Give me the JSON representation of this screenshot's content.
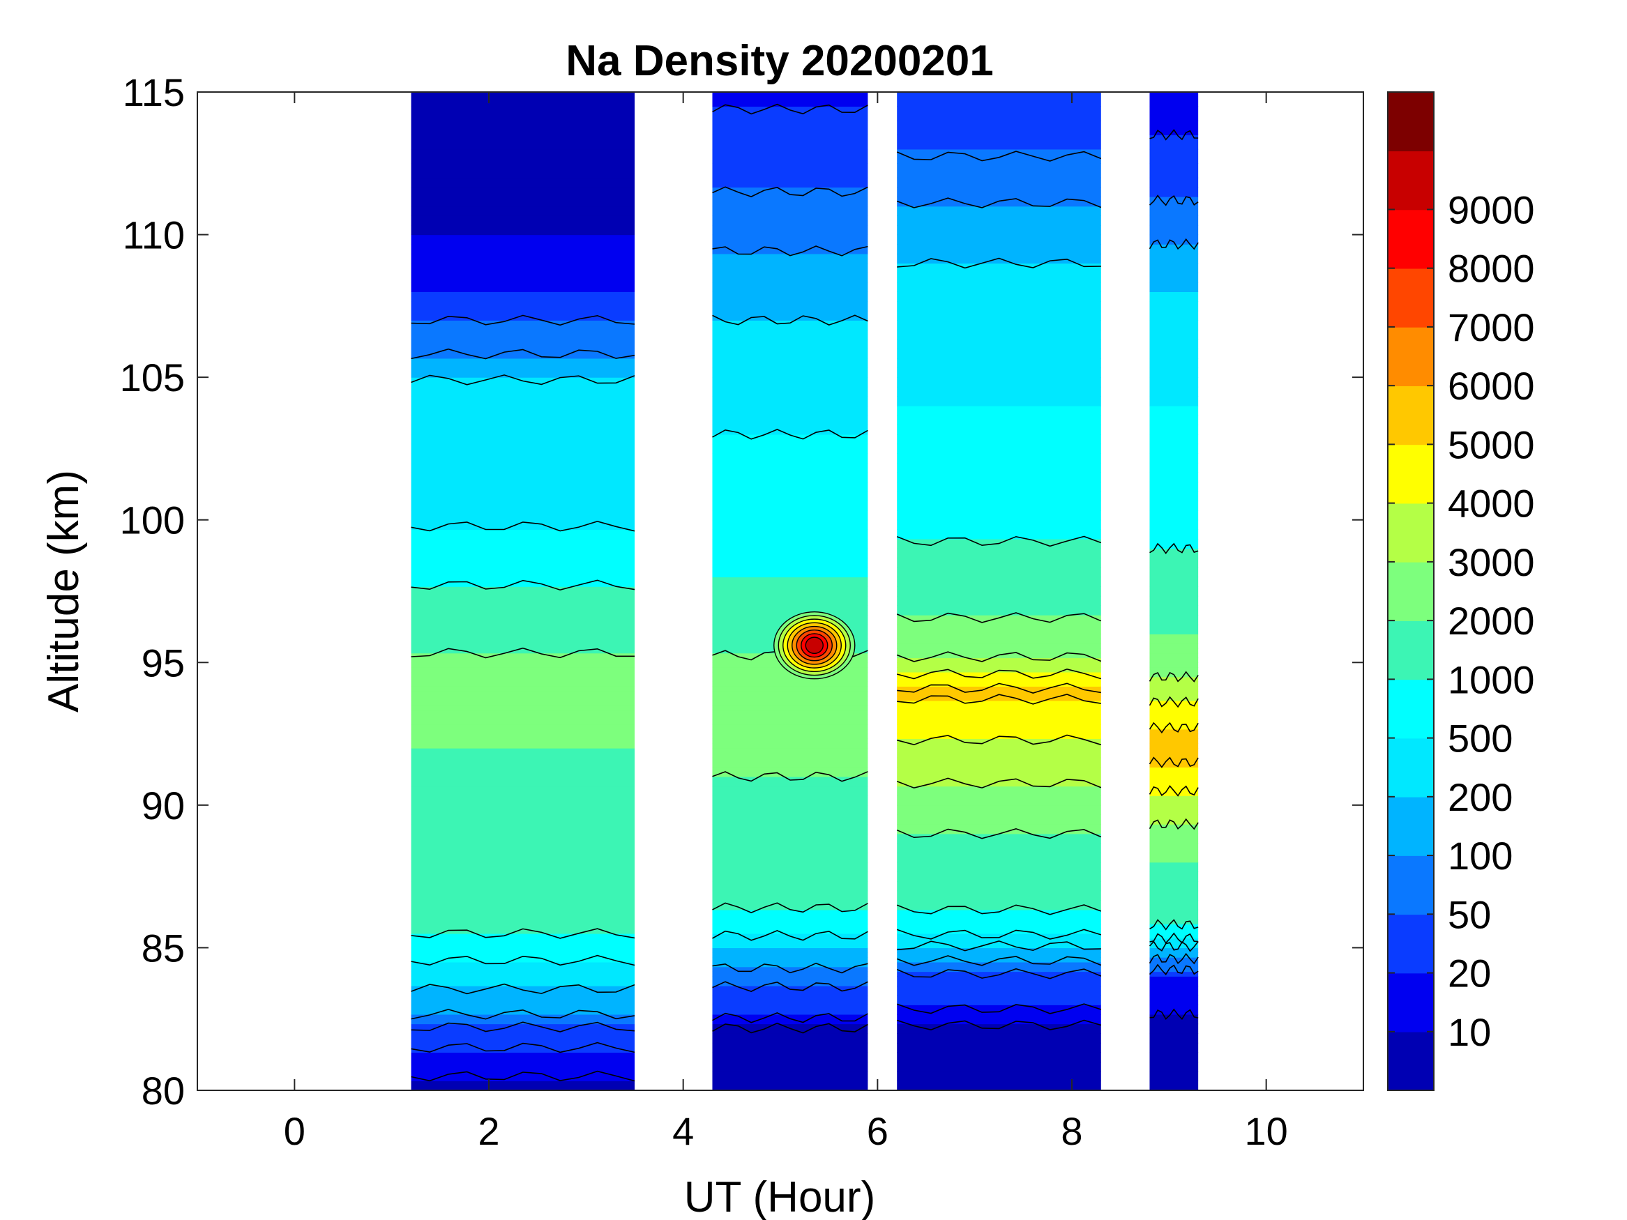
{
  "chart_data": {
    "type": "heatmap",
    "subtype": "filled-contour",
    "title": "Na Density 20200201",
    "xlabel": "UT (Hour)",
    "ylabel": "Altitude (km)",
    "xlim": [
      -1,
      11
    ],
    "ylim": [
      80,
      115
    ],
    "xticks": [
      0,
      2,
      4,
      6,
      8,
      10
    ],
    "yticks": [
      80,
      85,
      90,
      95,
      100,
      105,
      110,
      115
    ],
    "colorbar": {
      "levels": [
        0,
        10,
        20,
        50,
        100,
        200,
        500,
        1000,
        2000,
        3000,
        4000,
        5000,
        6000,
        7000,
        8000,
        9000,
        10000
      ],
      "tick_labels": [
        "10",
        "20",
        "50",
        "100",
        "200",
        "500",
        "1000",
        "2000",
        "3000",
        "4000",
        "5000",
        "6000",
        "7000",
        "8000",
        "9000"
      ],
      "colors": [
        "#0000b3",
        "#0000f0",
        "#0a3cff",
        "#0a78ff",
        "#00b4ff",
        "#00e8ff",
        "#00ffff",
        "#3cf5b4",
        "#7dff7d",
        "#b4ff46",
        "#ffff00",
        "#ffc800",
        "#ff8c00",
        "#ff4600",
        "#ff0000",
        "#c80000",
        "#7d0000"
      ]
    },
    "data_segments": [
      {
        "name": "segment-1",
        "ut_start": 1.2,
        "ut_end": 3.5
      },
      {
        "name": "segment-2",
        "ut_start": 4.3,
        "ut_end": 5.9
      },
      {
        "name": "segment-3",
        "ut_start": 6.2,
        "ut_end": 8.3
      },
      {
        "name": "segment-4",
        "ut_start": 8.8,
        "ut_end": 9.3
      }
    ],
    "sodium_layer": {
      "peak_altitude_km": 93,
      "main_layer_range_km": [
        85,
        100
      ],
      "max_density_peak": {
        "ut": 5.35,
        "altitude_km": 95.6,
        "density": 9000
      }
    },
    "profiles": [
      {
        "alt": 80,
        "seg": [
          5,
          5,
          5,
          5
        ]
      },
      {
        "alt": 82,
        "seg": [
          25,
          5,
          5,
          5
        ]
      },
      {
        "alt": 84,
        "seg": [
          250,
          60,
          40,
          20
        ]
      },
      {
        "alt": 85,
        "seg": [
          700,
          200,
          150,
          150
        ]
      },
      {
        "alt": 86,
        "seg": [
          1300,
          900,
          900,
          1200
        ]
      },
      {
        "alt": 88,
        "seg": [
          1800,
          1400,
          1500,
          2000
        ]
      },
      {
        "alt": 90,
        "seg": [
          1900,
          1800,
          2500,
          3500
        ]
      },
      {
        "alt": 92,
        "seg": [
          2000,
          2200,
          3800,
          5500
        ]
      },
      {
        "alt": 93,
        "seg": [
          2400,
          2500,
          4500,
          4800
        ]
      },
      {
        "alt": 94,
        "seg": [
          2300,
          2400,
          5200,
          3500
        ]
      },
      {
        "alt": 95,
        "seg": [
          2200,
          2100,
          3200,
          2500
        ]
      },
      {
        "alt": 96,
        "seg": [
          1600,
          1700,
          2200,
          2000
        ]
      },
      {
        "alt": 98,
        "seg": [
          900,
          1000,
          1500,
          1300
        ]
      },
      {
        "alt": 100,
        "seg": [
          450,
          500,
          700,
          700
        ]
      },
      {
        "alt": 102,
        "seg": [
          500,
          600,
          550,
          600
        ]
      },
      {
        "alt": 104,
        "seg": [
          300,
          400,
          500,
          500
        ]
      },
      {
        "alt": 106,
        "seg": [
          80,
          250,
          350,
          350
        ]
      },
      {
        "alt": 108,
        "seg": [
          20,
          150,
          250,
          200
        ]
      },
      {
        "alt": 110,
        "seg": [
          10,
          80,
          150,
          80
        ]
      },
      {
        "alt": 112,
        "seg": [
          6,
          40,
          60,
          30
        ]
      },
      {
        "alt": 115,
        "seg": [
          5,
          15,
          20,
          10
        ]
      }
    ]
  }
}
